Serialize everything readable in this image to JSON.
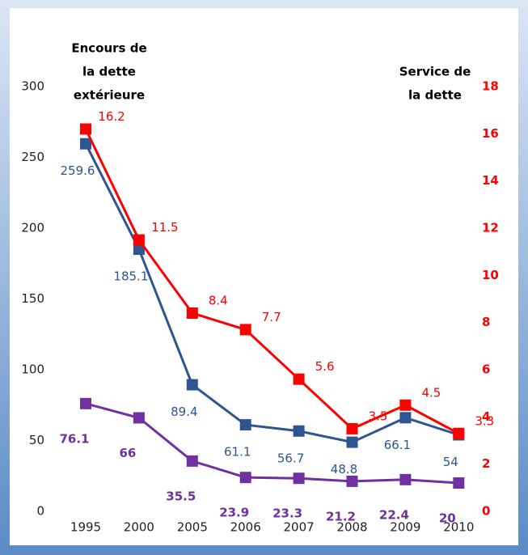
{
  "chart_data": {
    "type": "line",
    "ylabel": [
      "Encours de",
      "la dette",
      "extérieure"
    ],
    "y2label": [
      "Service de",
      "la dette"
    ],
    "categories": [
      "1995",
      "2000",
      "2005",
      "2006",
      "2007",
      "2008",
      "2009",
      "2010"
    ],
    "series": [
      {
        "color": "#2e5590",
        "values": [
          259.6,
          185.1,
          89.4,
          61.1,
          56.7,
          48.8,
          66.1,
          54
        ]
      },
      {
        "color": "#7030a0",
        "values": [
          76.1,
          66,
          35.5,
          23.9,
          23.3,
          21.2,
          22.4,
          20
        ]
      },
      {
        "color": "#ff0000",
        "axis": "y2",
        "values": [
          16.2,
          11.5,
          8.4,
          7.7,
          5.6,
          3.5,
          4.5,
          3.3
        ]
      }
    ],
    "ylim": [
      0,
      300
    ],
    "yticks": [
      0,
      50,
      100,
      150,
      200,
      250,
      300
    ],
    "y2lim": [
      0,
      18
    ],
    "y2ticks": [
      0,
      2,
      4,
      6,
      8,
      10,
      12,
      14,
      16,
      18
    ],
    "y2color": "#ff0000",
    "grid": false
  }
}
